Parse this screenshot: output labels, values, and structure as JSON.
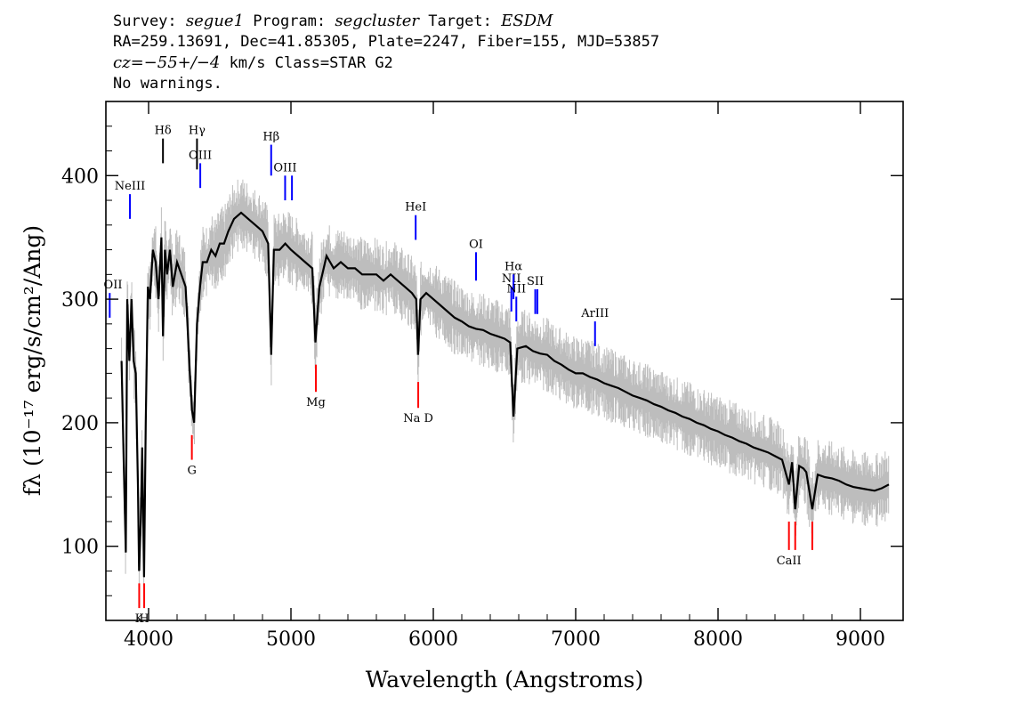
{
  "header": {
    "survey_label": "Survey:",
    "survey": "segue1",
    "program_label": "Program:",
    "program": "segcluster",
    "target_label": "Target:",
    "target": "ESDM",
    "line2": "RA=259.13691, Dec=41.85305, Plate=2247, Fiber=155, MJD=53857",
    "cz_label": "cz=",
    "cz_value": "−55+/−4",
    "cz_rest": " km/s Class=STAR G2",
    "line4": "No warnings."
  },
  "chart_data": {
    "type": "line",
    "xlabel": "Wavelength (Angstroms)",
    "ylabel": "fλ (10⁻¹⁷ erg/s/cm²/Ang)",
    "xlim": [
      3700,
      9300
    ],
    "ylim": [
      40,
      460
    ],
    "x_ticks": [
      4000,
      5000,
      6000,
      7000,
      8000,
      9000
    ],
    "y_ticks": [
      100,
      200,
      300,
      400
    ],
    "grid": false,
    "series": [
      {
        "color": "#000000",
        "noise_color": "#bdbdbd",
        "points": [
          [
            3810,
            250
          ],
          [
            3825,
            170
          ],
          [
            3840,
            95
          ],
          [
            3850,
            300
          ],
          [
            3865,
            250
          ],
          [
            3880,
            300
          ],
          [
            3895,
            250
          ],
          [
            3910,
            240
          ],
          [
            3925,
            150
          ],
          [
            3933,
            80
          ],
          [
            3945,
            120
          ],
          [
            3955,
            180
          ],
          [
            3968,
            75
          ],
          [
            3980,
            200
          ],
          [
            3995,
            310
          ],
          [
            4010,
            300
          ],
          [
            4030,
            340
          ],
          [
            4050,
            330
          ],
          [
            4070,
            300
          ],
          [
            4090,
            350
          ],
          [
            4101,
            270
          ],
          [
            4115,
            340
          ],
          [
            4130,
            320
          ],
          [
            4150,
            340
          ],
          [
            4170,
            310
          ],
          [
            4200,
            330
          ],
          [
            4230,
            320
          ],
          [
            4260,
            310
          ],
          [
            4290,
            240
          ],
          [
            4305,
            210
          ],
          [
            4320,
            200
          ],
          [
            4340,
            280
          ],
          [
            4361,
            310
          ],
          [
            4380,
            330
          ],
          [
            4410,
            330
          ],
          [
            4440,
            340
          ],
          [
            4470,
            335
          ],
          [
            4500,
            345
          ],
          [
            4530,
            345
          ],
          [
            4560,
            355
          ],
          [
            4600,
            365
          ],
          [
            4650,
            370
          ],
          [
            4700,
            365
          ],
          [
            4750,
            360
          ],
          [
            4800,
            355
          ],
          [
            4840,
            345
          ],
          [
            4861,
            255
          ],
          [
            4880,
            340
          ],
          [
            4920,
            340
          ],
          [
            4960,
            345
          ],
          [
            5000,
            340
          ],
          [
            5050,
            335
          ],
          [
            5100,
            330
          ],
          [
            5150,
            325
          ],
          [
            5172,
            265
          ],
          [
            5200,
            310
          ],
          [
            5250,
            335
          ],
          [
            5300,
            325
          ],
          [
            5350,
            330
          ],
          [
            5400,
            325
          ],
          [
            5450,
            325
          ],
          [
            5500,
            320
          ],
          [
            5550,
            320
          ],
          [
            5600,
            320
          ],
          [
            5650,
            315
          ],
          [
            5700,
            320
          ],
          [
            5750,
            315
          ],
          [
            5800,
            310
          ],
          [
            5850,
            305
          ],
          [
            5880,
            300
          ],
          [
            5893,
            255
          ],
          [
            5910,
            300
          ],
          [
            5950,
            305
          ],
          [
            6000,
            300
          ],
          [
            6050,
            295
          ],
          [
            6100,
            290
          ],
          [
            6150,
            285
          ],
          [
            6200,
            282
          ],
          [
            6250,
            278
          ],
          [
            6300,
            276
          ],
          [
            6350,
            275
          ],
          [
            6400,
            272
          ],
          [
            6450,
            270
          ],
          [
            6500,
            268
          ],
          [
            6540,
            265
          ],
          [
            6563,
            205
          ],
          [
            6590,
            260
          ],
          [
            6650,
            262
          ],
          [
            6700,
            258
          ],
          [
            6750,
            256
          ],
          [
            6800,
            255
          ],
          [
            6850,
            250
          ],
          [
            6900,
            247
          ],
          [
            6950,
            243
          ],
          [
            7000,
            240
          ],
          [
            7050,
            240
          ],
          [
            7100,
            237
          ],
          [
            7150,
            235
          ],
          [
            7200,
            232
          ],
          [
            7250,
            230
          ],
          [
            7300,
            228
          ],
          [
            7350,
            225
          ],
          [
            7400,
            222
          ],
          [
            7450,
            220
          ],
          [
            7500,
            218
          ],
          [
            7550,
            215
          ],
          [
            7600,
            213
          ],
          [
            7650,
            210
          ],
          [
            7700,
            208
          ],
          [
            7750,
            205
          ],
          [
            7800,
            203
          ],
          [
            7850,
            200
          ],
          [
            7900,
            198
          ],
          [
            7950,
            195
          ],
          [
            8000,
            193
          ],
          [
            8050,
            190
          ],
          [
            8100,
            188
          ],
          [
            8150,
            185
          ],
          [
            8200,
            183
          ],
          [
            8250,
            180
          ],
          [
            8300,
            178
          ],
          [
            8350,
            176
          ],
          [
            8400,
            173
          ],
          [
            8450,
            170
          ],
          [
            8498,
            150
          ],
          [
            8520,
            168
          ],
          [
            8542,
            130
          ],
          [
            8570,
            165
          ],
          [
            8600,
            163
          ],
          [
            8620,
            160
          ],
          [
            8662,
            130
          ],
          [
            8700,
            158
          ],
          [
            8750,
            156
          ],
          [
            8800,
            155
          ],
          [
            8850,
            153
          ],
          [
            8900,
            150
          ],
          [
            8950,
            148
          ],
          [
            9000,
            147
          ],
          [
            9050,
            146
          ],
          [
            9100,
            145
          ],
          [
            9150,
            147
          ],
          [
            9200,
            150
          ]
        ]
      }
    ],
    "emission_lines": [
      {
        "label": "Hδ",
        "wave": 4101,
        "y0": 410,
        "y1": 430,
        "color": "#000000"
      },
      {
        "label": "Hγ",
        "wave": 4340,
        "y0": 405,
        "y1": 430,
        "color": "#000000"
      },
      {
        "label": "Hβ",
        "wave": 4861,
        "y0": 400,
        "y1": 425,
        "color": "#0000ff"
      },
      {
        "label": "NeIII",
        "wave": 3869,
        "y0": 365,
        "y1": 385,
        "color": "#0000ff"
      },
      {
        "label": "OIII",
        "wave": 4363,
        "y0": 390,
        "y1": 410,
        "color": "#0000ff"
      },
      {
        "label": "OIII",
        "wave": 4959,
        "y0": 380,
        "y1": 400,
        "color": "#0000ff"
      },
      {
        "label": "",
        "wave": 5007,
        "y0": 380,
        "y1": 400,
        "color": "#0000ff"
      },
      {
        "label": "HeI",
        "wave": 5876,
        "y0": 348,
        "y1": 368,
        "color": "#0000ff"
      },
      {
        "label": "OI",
        "wave": 6300,
        "y0": 315,
        "y1": 338,
        "color": "#0000ff"
      },
      {
        "label": "NII",
        "wave": 6548,
        "y0": 290,
        "y1": 310,
        "color": "#0000ff"
      },
      {
        "label": "Hα",
        "wave": 6563,
        "y0": 300,
        "y1": 320,
        "color": "#0000ff"
      },
      {
        "label": "NII",
        "wave": 6583,
        "y0": 282,
        "y1": 302,
        "color": "#0000ff"
      },
      {
        "label": "SII",
        "wave": 6716,
        "y0": 288,
        "y1": 308,
        "color": "#0000ff"
      },
      {
        "label": "",
        "wave": 6731,
        "y0": 288,
        "y1": 308,
        "color": "#0000ff"
      },
      {
        "label": "ArIII",
        "wave": 7136,
        "y0": 262,
        "y1": 282,
        "color": "#0000ff"
      },
      {
        "label": "OII",
        "wave": 3727,
        "y0": 285,
        "y1": 305,
        "color": "#0000ff"
      }
    ],
    "absorption_lines": [
      {
        "label": "K",
        "wave": 3934,
        "y0": 50,
        "y1": 70,
        "color": "#ff0000"
      },
      {
        "label": "H",
        "wave": 3969,
        "y0": 50,
        "y1": 70,
        "color": "#ff0000"
      },
      {
        "label": "G",
        "wave": 4304,
        "y0": 170,
        "y1": 190,
        "color": "#ff0000"
      },
      {
        "label": "Mg",
        "wave": 5175,
        "y0": 225,
        "y1": 247,
        "color": "#ff0000"
      },
      {
        "label": "Na  D",
        "wave": 5894,
        "y0": 212,
        "y1": 233,
        "color": "#ff0000"
      },
      {
        "label": "CaII",
        "wave": 8498,
        "y0": 97,
        "y1": 120,
        "color": "#ff0000"
      },
      {
        "label": "",
        "wave": 8542,
        "y0": 97,
        "y1": 120,
        "color": "#ff0000"
      },
      {
        "label": "",
        "wave": 8662,
        "y0": 97,
        "y1": 120,
        "color": "#ff0000"
      }
    ]
  }
}
